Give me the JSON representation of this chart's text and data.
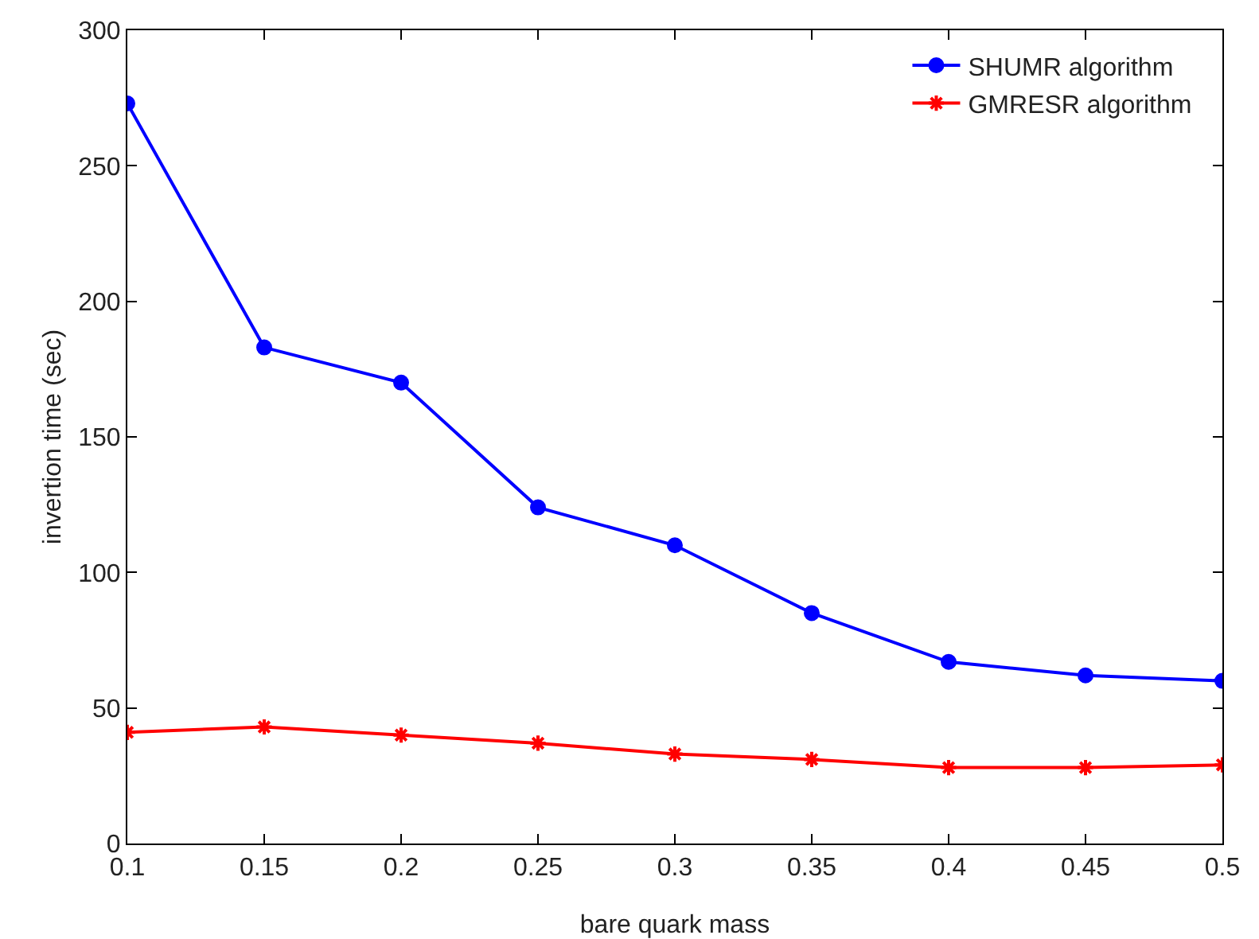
{
  "chart_data": {
    "type": "line",
    "xlabel": "bare quark mass",
    "ylabel": "invertion time (sec)",
    "x": [
      0.1,
      0.15,
      0.2,
      0.25,
      0.3,
      0.35,
      0.4,
      0.45,
      0.5
    ],
    "series": [
      {
        "name": "SHUMR algorithm",
        "color": "#0000ff",
        "marker": "circle",
        "values": [
          273,
          183,
          170,
          124,
          110,
          85,
          67,
          62,
          60
        ]
      },
      {
        "name": "GMRESR algorithm",
        "color": "#ff0000",
        "marker": "cross",
        "values": [
          41,
          43,
          40,
          37,
          33,
          31,
          28,
          28,
          29
        ]
      }
    ],
    "xlim": [
      0.1,
      0.5
    ],
    "xticks": [
      0.1,
      0.15,
      0.2,
      0.25,
      0.3,
      0.35,
      0.4,
      0.45,
      0.5
    ],
    "ylim": [
      0,
      300
    ],
    "yticks": [
      0,
      50,
      100,
      150,
      200,
      250,
      300
    ],
    "grid": false,
    "legend": "top right",
    "line_style": "solid"
  }
}
